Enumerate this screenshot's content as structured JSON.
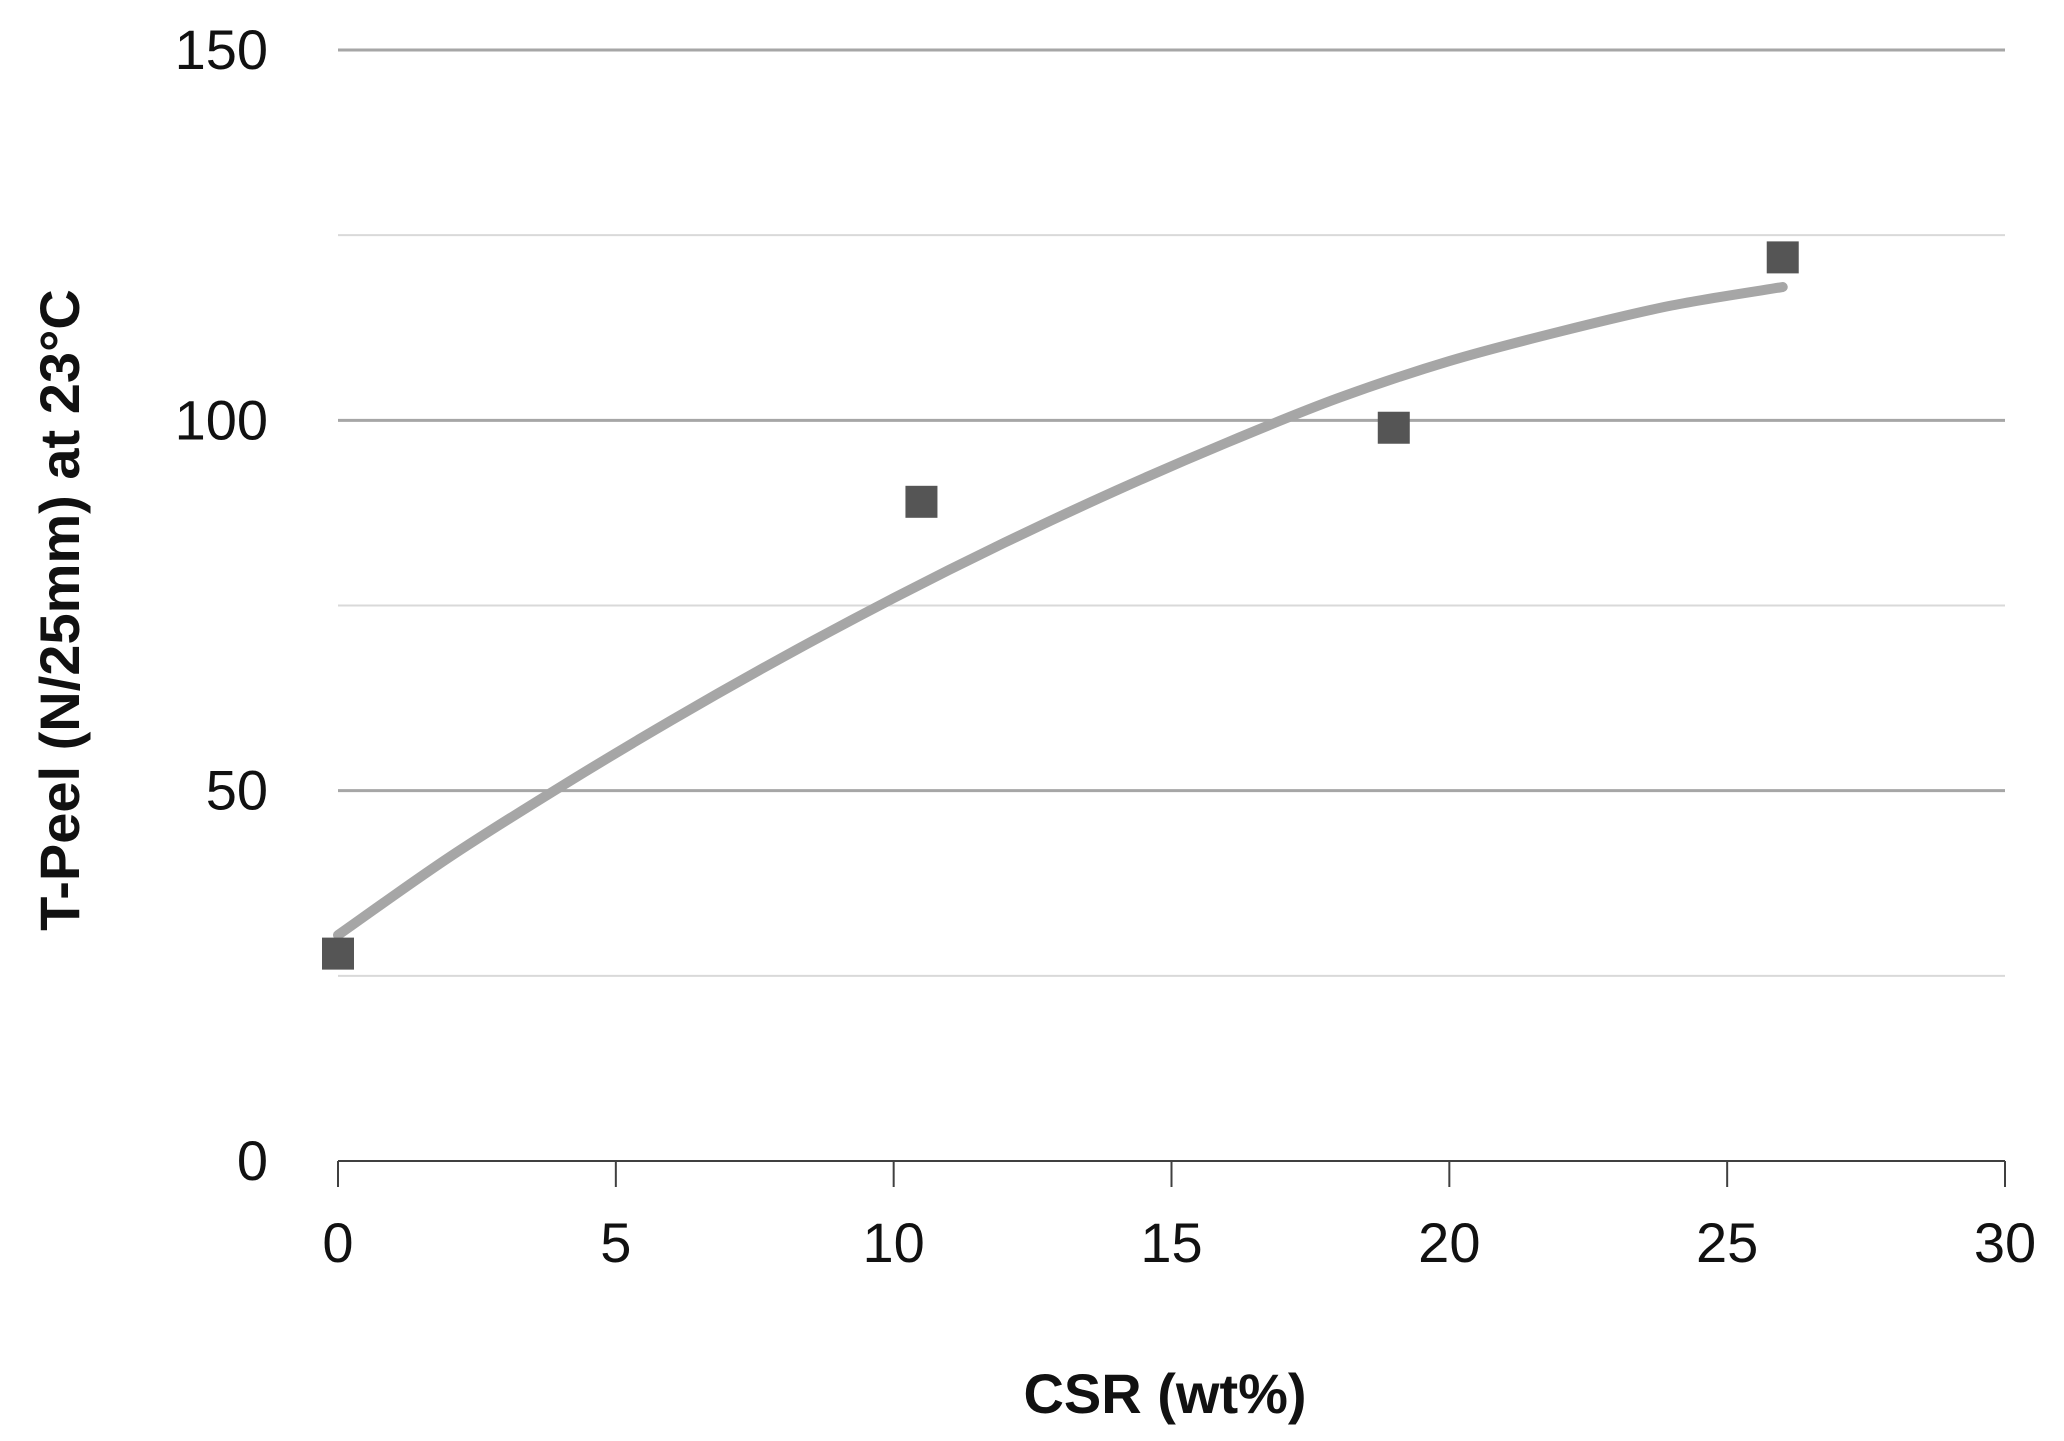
{
  "chart_data": {
    "type": "scatter",
    "title": "",
    "xlabel": "CSR (wt%)",
    "ylabel": "T-Peel (N/25mm) at 23°C",
    "xlim": [
      0,
      30
    ],
    "ylim": [
      0,
      150
    ],
    "x_ticks": [
      "0",
      "5",
      "10",
      "15",
      "20",
      "25",
      "30"
    ],
    "y_ticks": [
      "0",
      "50",
      "100",
      "150"
    ],
    "grid": "horizontal",
    "legend": "none",
    "series": [
      {
        "marker": "square",
        "color": "#555555",
        "x": [
          0,
          10.5,
          19,
          26
        ],
        "y": [
          28,
          89,
          99,
          122
        ]
      }
    ],
    "trendline": {
      "type": "curve",
      "color": "#a6a6a6",
      "x": [
        0,
        2,
        4,
        6,
        8,
        10,
        12,
        14,
        16,
        18,
        20,
        22,
        24,
        26
      ],
      "y": [
        30.5,
        41,
        50.5,
        59.5,
        68,
        76,
        83.5,
        90.5,
        97,
        103,
        108,
        112,
        115.5,
        118
      ]
    }
  }
}
